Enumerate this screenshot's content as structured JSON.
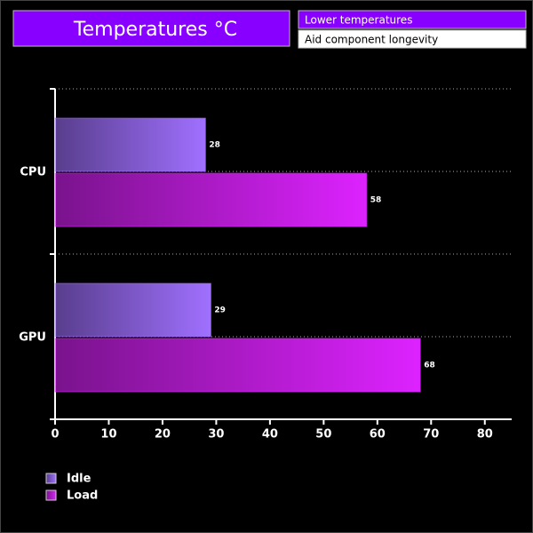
{
  "chart_data": {
    "type": "bar",
    "orientation": "horizontal",
    "title": "Temperatures °C",
    "annotations": [
      "Lower temperatures",
      "Aid component longevity"
    ],
    "categories": [
      "CPU",
      "GPU"
    ],
    "series": [
      {
        "name": "Idle",
        "color": "#a070ff",
        "values": [
          28,
          29
        ]
      },
      {
        "name": "Load",
        "color": "#dd22ff",
        "values": [
          58,
          68
        ]
      }
    ],
    "xlim": [
      0,
      85
    ],
    "xticks": [
      0,
      10,
      20,
      30,
      40,
      50,
      60,
      70,
      80
    ],
    "grid": true,
    "legend": "bottom-left"
  }
}
